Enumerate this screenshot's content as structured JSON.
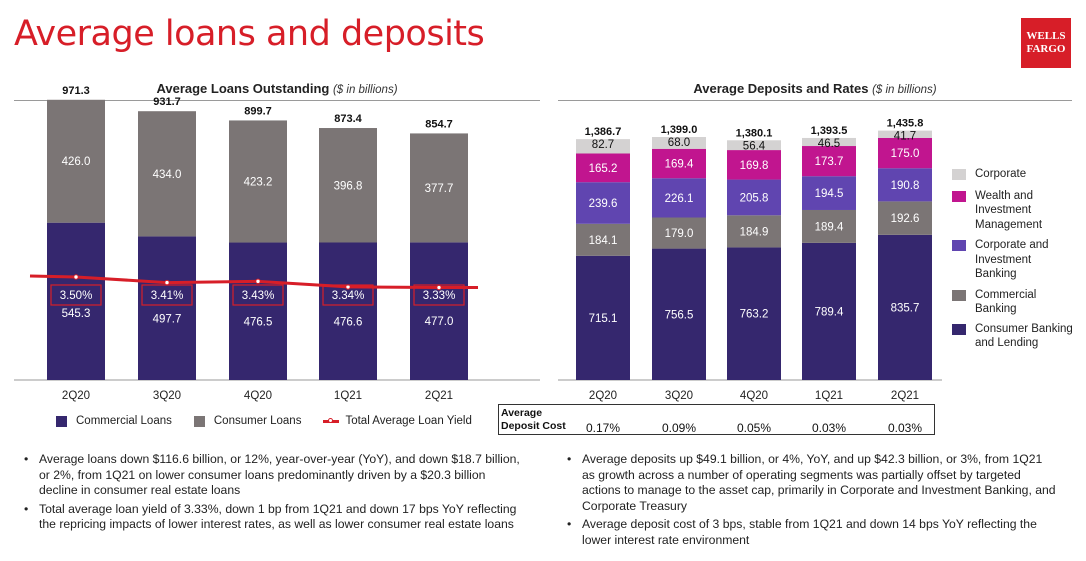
{
  "title": "Average loans and deposits",
  "brand": {
    "line1": "WELLS",
    "line2": "FARGO",
    "color": "#d71e28"
  },
  "colors": {
    "consumer_banking": "#35276e",
    "commercial_gray": "#7b7575",
    "corp_inv": "#6045b0",
    "wealth": "#c1158f",
    "corporate_light": "#d4d2d2",
    "yield_line": "#d71e28"
  },
  "loans_panel": {
    "title": "Average Loans Outstanding",
    "unit": "($ in billions)"
  },
  "deposits_panel": {
    "title": "Average Deposits and Rates",
    "unit": "($ in billions)"
  },
  "loans_legend": [
    {
      "label": "Commercial Loans",
      "color": "#35276e",
      "kind": "box"
    },
    {
      "label": "Consumer Loans",
      "color": "#7b7575",
      "kind": "box"
    },
    {
      "label": "Total Average Loan Yield",
      "color": "#d71e28",
      "kind": "line"
    }
  ],
  "deposits_legend": [
    {
      "label": "Corporate",
      "color": "#d4d2d2"
    },
    {
      "label": "Wealth and Investment Management",
      "color": "#c1158f"
    },
    {
      "label": "Corporate and Investment Banking",
      "color": "#6045b0"
    },
    {
      "label": "Commercial Banking",
      "color": "#7b7575"
    },
    {
      "label": "Consumer Banking and Lending",
      "color": "#35276e"
    }
  ],
  "chart_data": [
    {
      "type": "bar",
      "stacked": true,
      "title": "Average Loans Outstanding ($ in billions)",
      "categories": [
        "2Q20",
        "3Q20",
        "4Q20",
        "1Q21",
        "2Q21"
      ],
      "series": [
        {
          "name": "Commercial Loans",
          "values": [
            545.3,
            497.7,
            476.5,
            476.6,
            477.0
          ],
          "color": "#35276e"
        },
        {
          "name": "Consumer Loans",
          "values": [
            426.0,
            434.0,
            423.2,
            396.8,
            377.7
          ],
          "color": "#7b7575"
        }
      ],
      "totals": [
        "971.3",
        "931.7",
        "899.7",
        "873.4",
        "854.7"
      ],
      "line": {
        "name": "Total Average Loan Yield",
        "values": [
          3.5,
          3.41,
          3.43,
          3.34,
          3.33
        ],
        "labels": [
          "3.50%",
          "3.41%",
          "3.43%",
          "3.34%",
          "3.33%"
        ],
        "color": "#d71e28"
      }
    },
    {
      "type": "bar",
      "stacked": true,
      "title": "Average Deposits and Rates ($ in billions)",
      "categories": [
        "2Q20",
        "3Q20",
        "4Q20",
        "1Q21",
        "2Q21"
      ],
      "series": [
        {
          "name": "Consumer Banking and Lending",
          "values": [
            715.1,
            756.5,
            763.2,
            789.4,
            835.7
          ],
          "color": "#35276e"
        },
        {
          "name": "Commercial Banking",
          "values": [
            184.1,
            179.0,
            184.9,
            189.4,
            192.6
          ],
          "color": "#7b7575"
        },
        {
          "name": "Corporate and Investment Banking",
          "values": [
            239.6,
            226.1,
            205.8,
            194.5,
            190.8
          ],
          "color": "#6045b0"
        },
        {
          "name": "Wealth and Investment Management",
          "values": [
            165.2,
            169.4,
            169.8,
            173.7,
            175.0
          ],
          "color": "#c1158f"
        },
        {
          "name": "Corporate",
          "values": [
            82.7,
            68.0,
            56.4,
            46.5,
            41.7
          ],
          "color": "#d4d2d2"
        }
      ],
      "totals": [
        "1,386.7",
        "1,399.0",
        "1,380.1",
        "1,393.5",
        "1,435.8"
      ],
      "deposit_cost": {
        "label_line1": "Average",
        "label_line2": "Deposit Cost",
        "values": [
          "0.17%",
          "0.09%",
          "0.05%",
          "0.03%",
          "0.03%"
        ]
      }
    }
  ],
  "loans_bullets": [
    "Average loans down $116.6 billion, or 12%, year-over-year (YoY), and down $18.7 billion, or 2%, from 1Q21 on lower consumer loans predominantly driven by a $20.3 billion decline in consumer real estate loans",
    "Total average loan yield of 3.33%, down 1 bp from 1Q21 and down 17 bps YoY reflecting the repricing impacts of lower interest rates, as well as lower consumer real estate loans"
  ],
  "deposits_bullets": [
    "Average deposits up $49.1 billion, or 4%, YoY, and up $42.3 billion, or 3%, from 1Q21 as growth across a number of operating segments was partially offset by targeted actions to manage to the asset cap, primarily in Corporate and Investment Banking, and Corporate Treasury",
    "Average deposit cost of 3 bps, stable from 1Q21 and down 14 bps YoY reflecting the lower interest rate environment"
  ]
}
